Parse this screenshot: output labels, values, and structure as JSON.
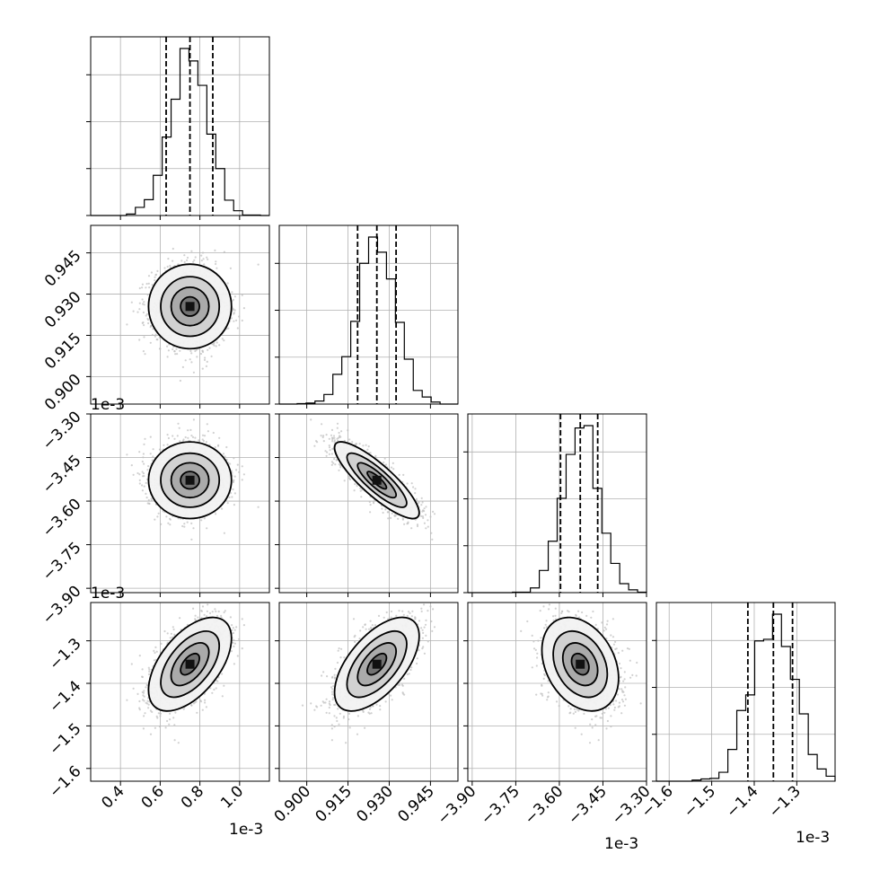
{
  "chart_data": {
    "type": "corner",
    "parameters": [
      {
        "range": [
          0.25,
          1.15
        ],
        "exp_label": "1e-3",
        "ticks": [
          0.4,
          0.6,
          0.8,
          1.0
        ],
        "tick_labels": [
          "0.4",
          "0.6",
          "0.8",
          "1.0"
        ],
        "quantiles": [
          0.63,
          0.75,
          0.865
        ],
        "mean": 0.75,
        "sd": 0.095,
        "hist_peak": 0.755
      },
      {
        "range": [
          0.89,
          0.955
        ],
        "exp_label": "1e-3",
        "ticks": [
          0.9,
          0.915,
          0.93,
          0.945
        ],
        "tick_labels": [
          "0.900",
          "0.915",
          "0.930",
          "0.945"
        ],
        "quantiles": [
          0.9185,
          0.9255,
          0.9325
        ],
        "mean": 0.9255,
        "sd": 0.007,
        "hist_peak": 0.9255
      },
      {
        "range": [
          -3.915,
          -3.3
        ],
        "exp_label": "1e-3",
        "ticks": [
          -3.9,
          -3.75,
          -3.6,
          -3.45,
          -3.3
        ],
        "tick_labels": [
          "−3.90",
          "−3.75",
          "−3.60",
          "−3.45",
          "−3.30"
        ],
        "quantiles": [
          -3.596,
          -3.528,
          -3.468
        ],
        "mean": -3.528,
        "sd": 0.06,
        "hist_peak": -3.52
      },
      {
        "range": [
          -1.63,
          -1.21
        ],
        "exp_label": "1e-3",
        "ticks": [
          -1.6,
          -1.5,
          -1.4,
          -1.3
        ],
        "tick_labels": [
          "−1.6",
          "−1.5",
          "−1.4",
          "−1.3"
        ],
        "quantiles": [
          -1.415,
          -1.355,
          -1.31
        ],
        "mean": -1.355,
        "sd": 0.05,
        "hist_peak": -1.325
      }
    ],
    "correlations": [
      [
        1.0,
        0.0,
        0.0,
        0.55
      ],
      [
        0.0,
        1.0,
        -0.85,
        0.6
      ],
      [
        0.0,
        -0.85,
        1.0,
        -0.3
      ],
      [
        0.55,
        0.6,
        -0.3,
        1.0
      ]
    ],
    "histogram_bins": 20,
    "grid": true,
    "scatter_color": "#bdbdbd",
    "line_color": "#000000"
  }
}
